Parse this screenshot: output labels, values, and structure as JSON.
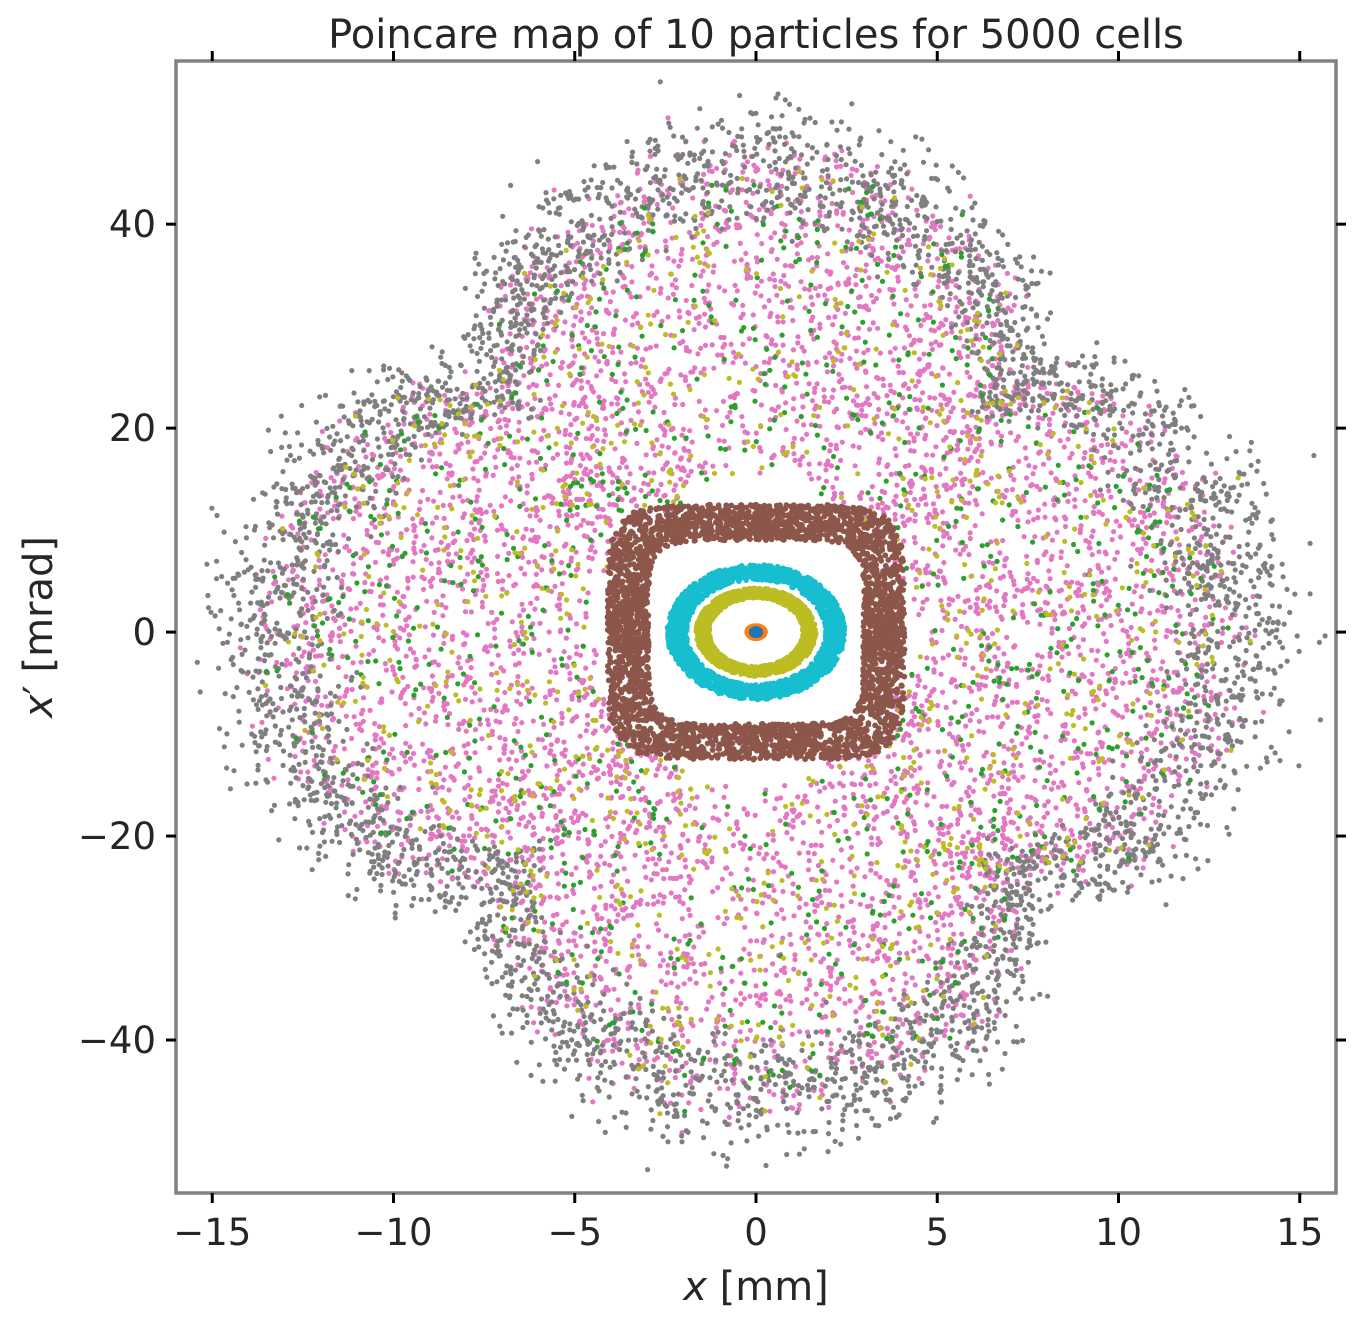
{
  "chart_data": {
    "type": "scatter",
    "title": "Poincare map of 10 particles for 5000 cells",
    "xlabel": "x [mm]",
    "ylabel": "x′ [mrad]",
    "xlim": [
      -16,
      16
    ],
    "ylim": [
      -55,
      56
    ],
    "xticks": [
      -15,
      -10,
      -5,
      0,
      5,
      10,
      15
    ],
    "yticks": [
      -40,
      -20,
      0,
      20,
      40
    ],
    "xtick_labels": [
      "−15",
      "−10",
      "−5",
      "0",
      "5",
      "10",
      "15"
    ],
    "ytick_labels": [
      "−40",
      "−20",
      "0",
      "20",
      "40"
    ],
    "grid": false,
    "legend": "none",
    "cells": 5000,
    "particles": 10,
    "series": [
      {
        "color": "#1f77b4",
        "shape": "ellipse",
        "x_half_width": 0.12,
        "y_half_width": 0.3,
        "points_shown": 200
      },
      {
        "color": "#ff7f0e",
        "shape": "ellipse",
        "x_half_width": 0.25,
        "y_half_width": 0.6,
        "points_shown": 300
      },
      {
        "color": "#bcbd22",
        "shape": "ellipse",
        "x_half_width": 1.65,
        "y_half_width": 4.3,
        "points_shown": 1500
      },
      {
        "color": "#17becf",
        "shape": "ellipse",
        "x_half_width": 2.45,
        "y_half_width": 6.6,
        "points_shown": 1800
      },
      {
        "color": "#8c564b",
        "shape": "square",
        "x_half_width": 4.1,
        "y_half_width": 12.5,
        "points_shown": 3500
      },
      {
        "color": "#e377c2",
        "shape": "chaotic",
        "x_half_width": 13.5,
        "y_half_width": 47,
        "points_shown": 5500
      },
      {
        "color": "#7f7f7f",
        "shape": "chaotic",
        "x_half_width": 14.6,
        "y_half_width": 50,
        "points_shown": 4000
      },
      {
        "color": "#2ca02c",
        "shape": "chaotic",
        "x_half_width": 13,
        "y_half_width": 45,
        "points_shown": 900
      },
      {
        "color": "#bcbd22",
        "shape": "chaotic",
        "x_half_width": 13,
        "y_half_width": 45,
        "points_shown": 900
      }
    ]
  }
}
